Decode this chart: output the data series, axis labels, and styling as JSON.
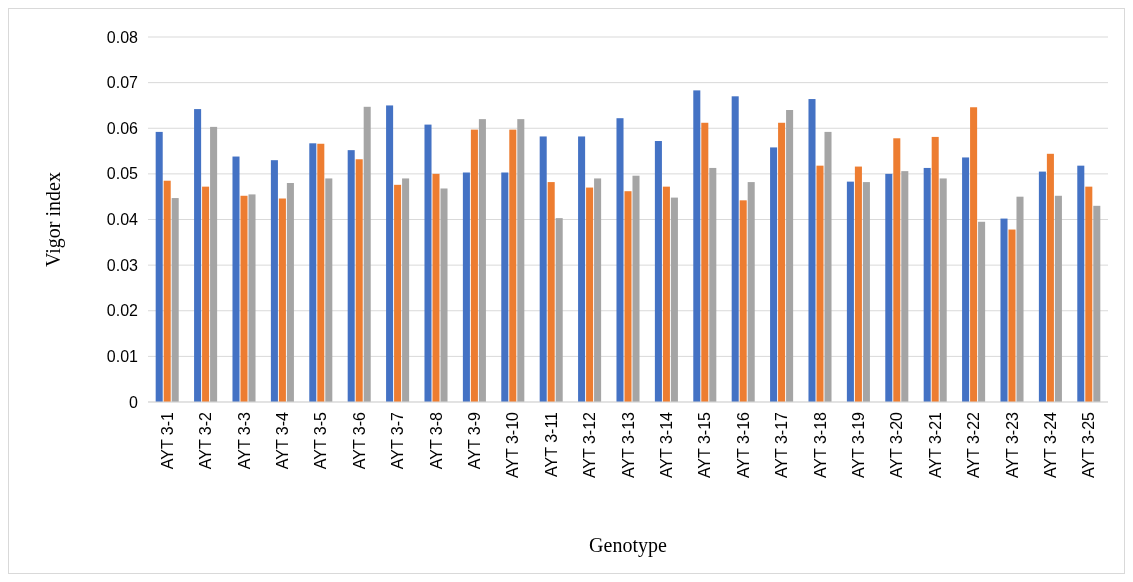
{
  "chart_data": {
    "type": "bar",
    "xlabel": "Genotype",
    "ylabel": "Vigor index",
    "categories": [
      "AYT 3-1",
      "AYT 3-2",
      "AYT 3-3",
      "AYT 3-4",
      "AYT 3-5",
      "AYT 3-6",
      "AYT 3-7",
      "AYT 3-8",
      "AYT 3-9",
      "AYT 3-10",
      "AYT 3-11",
      "AYT 3-12",
      "AYT 3-13",
      "AYT 3-14",
      "AYT 3-15",
      "AYT 3-16",
      "AYT 3-17",
      "AYT 3-18",
      "AYT 3-19",
      "AYT 3-20",
      "AYT 3-21",
      "AYT 3-22",
      "AYT 3-23",
      "AYT 3-24",
      "AYT 3-25"
    ],
    "series": [
      {
        "color": "#4472c4",
        "values": [
          0.0592,
          0.0642,
          0.0538,
          0.053,
          0.0567,
          0.0552,
          0.065,
          0.0608,
          0.0503,
          0.0503,
          0.0582,
          0.0582,
          0.0622,
          0.0572,
          0.0683,
          0.067,
          0.0558,
          0.0664,
          0.0483,
          0.05,
          0.0513,
          0.0536,
          0.0402,
          0.0505,
          0.0518
        ]
      },
      {
        "color": "#ed7d31",
        "values": [
          0.0485,
          0.0472,
          0.0452,
          0.0446,
          0.0566,
          0.0532,
          0.0476,
          0.05,
          0.0597,
          0.0597,
          0.0482,
          0.047,
          0.0462,
          0.0472,
          0.0612,
          0.0442,
          0.0612,
          0.0518,
          0.0516,
          0.0578,
          0.0581,
          0.0646,
          0.0378,
          0.0544,
          0.0472
        ]
      },
      {
        "color": "#a5a5a5",
        "values": [
          0.0447,
          0.0603,
          0.0455,
          0.048,
          0.049,
          0.0647,
          0.049,
          0.0468,
          0.062,
          0.062,
          0.0403,
          0.049,
          0.0496,
          0.0448,
          0.0513,
          0.0482,
          0.064,
          0.0592,
          0.0482,
          0.0506,
          0.049,
          0.0395,
          0.045,
          0.0452,
          0.043
        ]
      }
    ],
    "ylim": [
      0,
      0.08
    ],
    "yticks": [
      {
        "value": 0,
        "label": "0"
      },
      0.01,
      0.02,
      0.03,
      0.04,
      0.05,
      0.06,
      0.07,
      0.08
    ],
    "grid": "y"
  }
}
